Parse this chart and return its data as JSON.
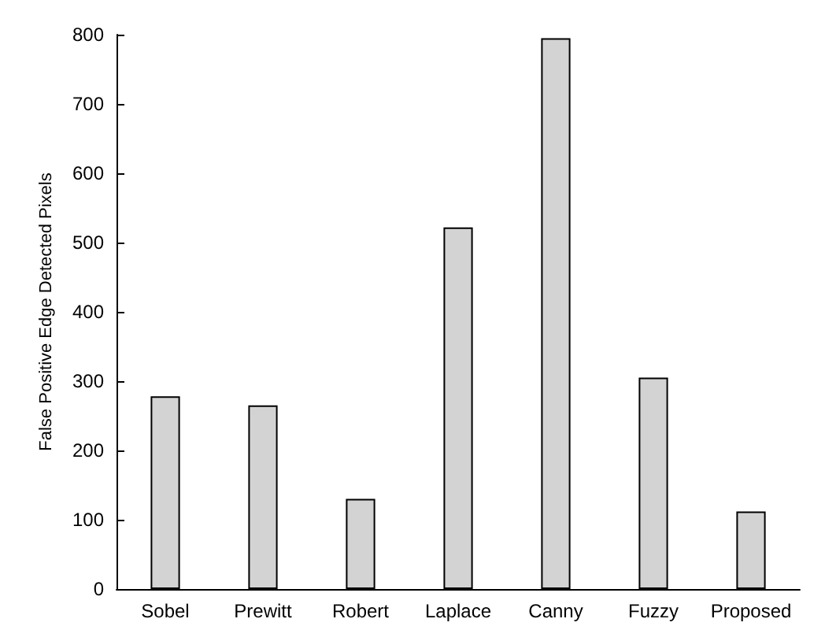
{
  "chart_data": {
    "type": "bar",
    "ylabel": "False Positive Edge Detected Pixels",
    "categories": [
      "Sobel",
      "Prewitt",
      "Robert",
      "Laplace",
      "Canny",
      "Fuzzy",
      "Proposed"
    ],
    "values": [
      278,
      265,
      130,
      522,
      795,
      305,
      112
    ],
    "color": "#d3d3d3",
    "ylim": [
      0,
      800
    ],
    "yticks": [
      0,
      100,
      200,
      300,
      400,
      500,
      600,
      700,
      800
    ],
    "grid": false
  }
}
